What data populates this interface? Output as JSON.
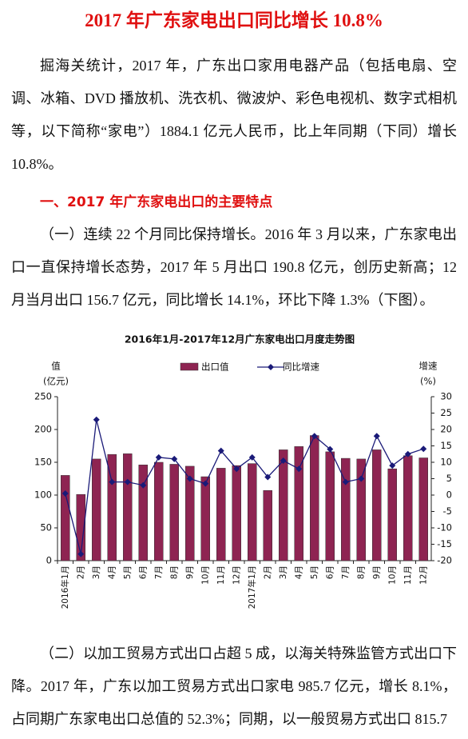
{
  "title": "2017 年广东家电出口同比增长 10.8%",
  "paragraphs": [
    "掘海关统计，2017 年，广东出口家用电器产品（包括电扇、空调、冰箱、DVD 播放机、洗衣机、微波炉、彩色电视机、数字式相机等，以下简称“家电”）1884.1 亿元人民币，比上年同期（下同）增长 10.8%。",
    "一、2017 年广东家电出口的主要特点",
    "（一）连续 22 个月同比保持增长。2016 年 3 月以来，广东家电出口一直保持增长态势，2017 年 5 月出口 190.8 亿元，创历史新高；12 月当月出口 156.7 亿元，同比增长 14.1%，环比下降 1.3%（下图）。",
    "（二）以加工贸易方式出口占超 5 成，以海关特殊监管方式出口下降。2017 年，广东以加工贸易方式出口家电 985.7 亿元，增长 8.1%，占同期广东家电出口总值的 52.3%；同期，以一般贸易方式出口 815.7"
  ],
  "chart_data": {
    "type": "bar-line",
    "title": "2016年1月-2017年12月广东家电出口月度走势图",
    "ylabel": [
      "值",
      "(亿元)"
    ],
    "y2label": [
      "增速",
      "(%)"
    ],
    "categories": [
      "2016年1月",
      "2月",
      "3月",
      "4月",
      "5月",
      "6月",
      "7月",
      "8月",
      "9月",
      "10月",
      "11月",
      "12月",
      "2017年1月",
      "2月",
      "3月",
      "4月",
      "5月",
      "6月",
      "7月",
      "8月",
      "9月",
      "10月",
      "11月",
      "12月"
    ],
    "series": [
      {
        "name": "出口值",
        "color": "#8e2452",
        "type": "bar",
        "values": [
          130,
          101,
          155,
          162,
          163,
          146,
          150,
          147,
          144,
          128,
          141,
          145,
          148,
          107,
          169,
          174,
          190.8,
          166,
          156,
          155,
          169,
          140,
          160,
          156.7
        ]
      },
      {
        "name": "同比增速",
        "color": "#1a1a78",
        "type": "line",
        "axis": "y2",
        "values": [
          0.5,
          -18,
          23,
          4,
          4,
          3,
          11.5,
          11,
          5,
          3.5,
          13.5,
          8,
          11.5,
          5.5,
          10.5,
          8,
          18,
          14,
          4,
          5,
          18,
          9,
          12.5,
          14.1
        ]
      }
    ],
    "ylim": [
      0,
      250
    ],
    "yticks": [
      0,
      50,
      100,
      150,
      200,
      250
    ],
    "y2lim": [
      -20,
      30
    ],
    "y2ticks": [
      -20,
      -15,
      -10,
      -5,
      0,
      5,
      10,
      15,
      20,
      25,
      30
    ]
  }
}
